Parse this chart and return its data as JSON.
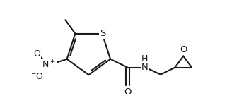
{
  "bg_color": "#ffffff",
  "line_color": "#1a1a1a",
  "line_width": 1.5,
  "font_size": 9.5,
  "fig_width": 3.21,
  "fig_height": 1.56,
  "xlim": [
    0.0,
    10.5
  ],
  "ylim": [
    1.0,
    6.5
  ]
}
